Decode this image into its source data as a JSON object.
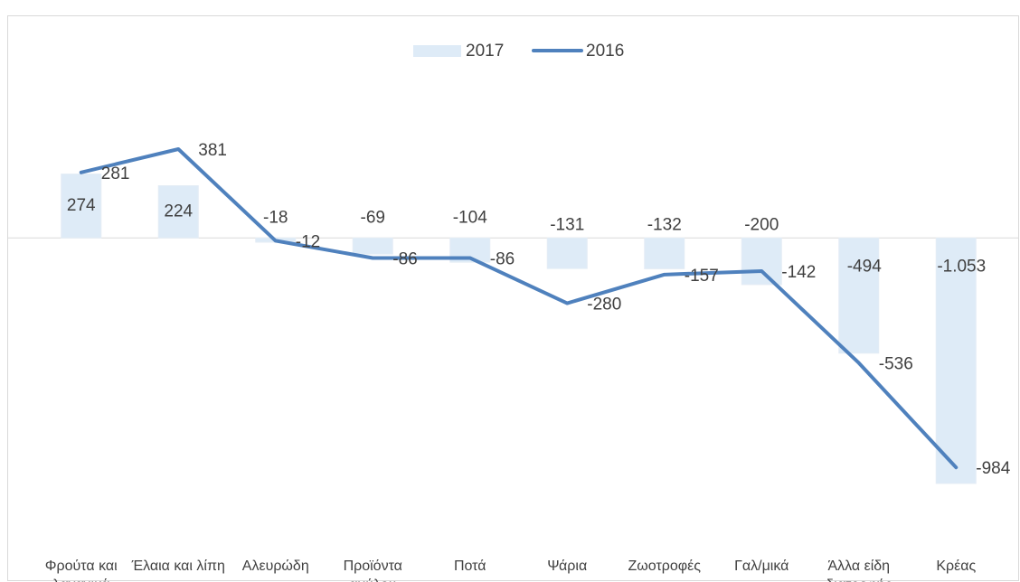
{
  "chart_data": {
    "type": "bar",
    "categories": [
      "Φρούτα και λαχανικά",
      "Έλαια και λίπη",
      "Αλευρώδη",
      "Προϊόντα αμύλου",
      "Ποτά",
      "Ψάρια",
      "Ζωοτροφές",
      "Γαλ/μικά",
      "Άλλα είδη διατροφής",
      "Κρέας"
    ],
    "series": [
      {
        "name": "2017",
        "type": "bar",
        "color": "#deebf7",
        "values": [
          274,
          224,
          -18,
          -69,
          -104,
          -131,
          -132,
          -200,
          -494,
          -1053
        ],
        "value_labels": [
          "274",
          "224",
          "-18",
          "-69",
          "-104",
          "-131",
          "-132",
          "-200",
          "-494",
          "-1.053"
        ]
      },
      {
        "name": "2016",
        "type": "line",
        "color": "#4f81bd",
        "values": [
          281,
          381,
          -12,
          -86,
          -86,
          -280,
          -157,
          -142,
          -536,
          -984
        ]
      }
    ],
    "legend": "top"
  }
}
